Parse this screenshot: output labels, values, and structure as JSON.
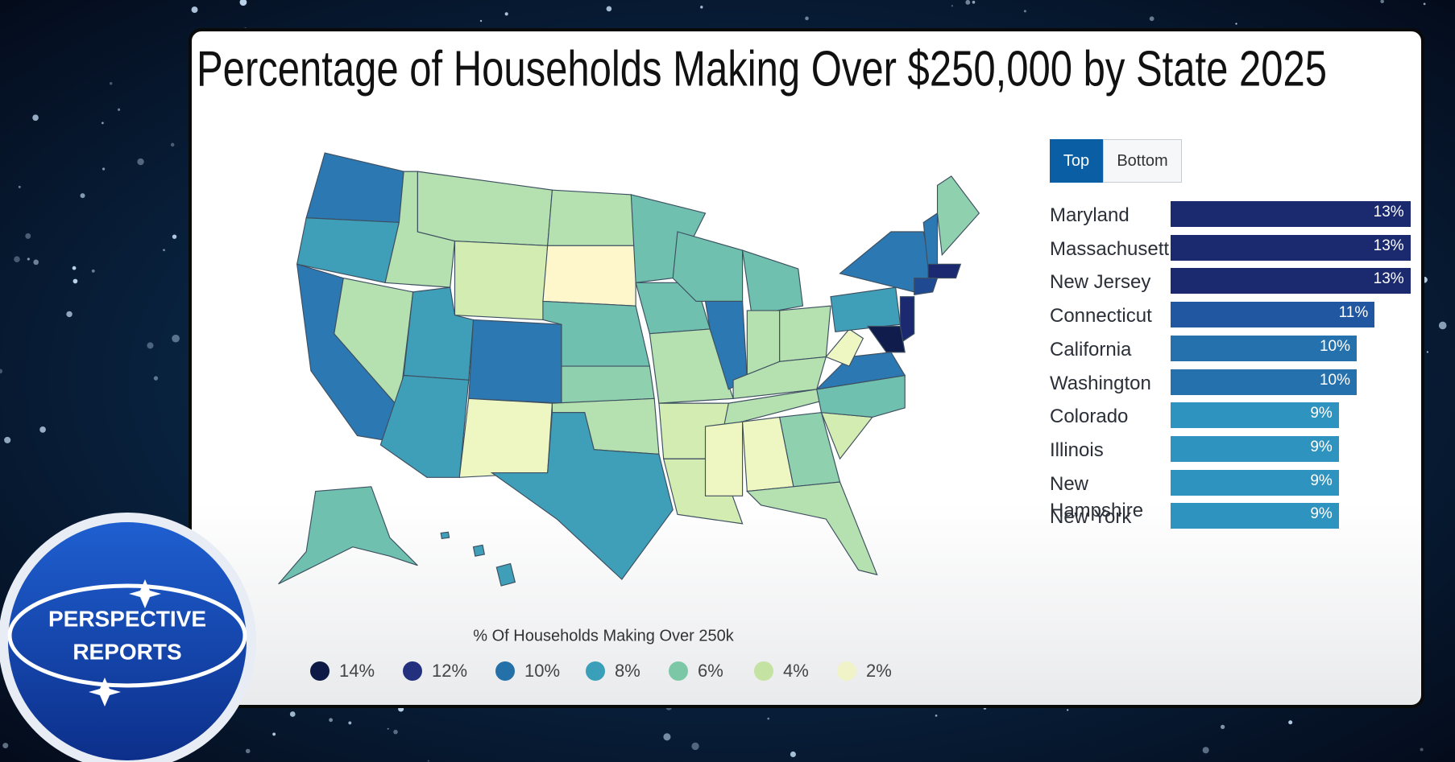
{
  "title": "Percentage of Households Making Over $250,000 by State 2025",
  "map": {
    "legend_title": "% Of Households Making Over 250k",
    "legend": [
      {
        "value": 14,
        "label": "14%",
        "color": "#0d1a45"
      },
      {
        "value": 12,
        "label": "12%",
        "color": "#23307e"
      },
      {
        "value": 10,
        "label": "10%",
        "color": "#2470a8"
      },
      {
        "value": 8,
        "label": "8%",
        "color": "#3a9fb8"
      },
      {
        "value": 6,
        "label": "6%",
        "color": "#7cc7a6"
      },
      {
        "value": 4,
        "label": "4%",
        "color": "#c4e2a2"
      },
      {
        "value": 2,
        "label": "2%",
        "color": "#f0f3c8"
      }
    ]
  },
  "toggle": {
    "options": [
      "Top",
      "Bottom"
    ],
    "active": 0
  },
  "chart_data": {
    "type": "bar",
    "orientation": "horizontal",
    "categories": [
      "Maryland",
      "Massachusetts",
      "New Jersey",
      "Connecticut",
      "California",
      "Washington",
      "Colorado",
      "Illinois",
      "New Hampshire",
      "New York"
    ],
    "values": [
      13.4,
      13.4,
      13.4,
      11.4,
      10.4,
      10.4,
      9.4,
      9.4,
      9.4,
      9.4
    ],
    "value_labels": [
      "13%",
      "13%",
      "13%",
      "11%",
      "10%",
      "10%",
      "9%",
      "9%",
      "9%",
      "9%"
    ],
    "colors": [
      "#1b2a6e",
      "#1b2a6e",
      "#1b2a6e",
      "#2156a0",
      "#2471ad",
      "#2471ad",
      "#2e93bf",
      "#2e93bf",
      "#2e93bf",
      "#2e93bf"
    ],
    "xlim": [
      0,
      14
    ]
  },
  "logo": {
    "line1": "PERSPECTIVE",
    "line2": "REPORTS"
  }
}
